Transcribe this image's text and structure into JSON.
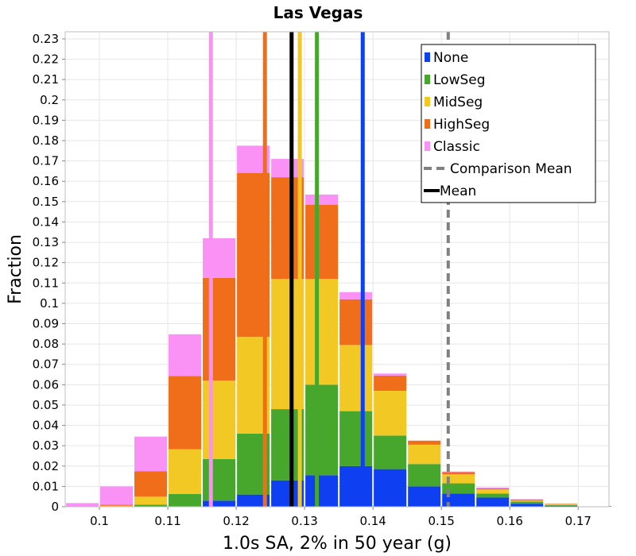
{
  "chart_data": {
    "type": "bar",
    "stacked": true,
    "title": "Las Vegas",
    "xlabel": "1.0s SA, 2% in 50 year (g)",
    "ylabel": "Fraction",
    "xlim": [
      0.095,
      0.1745
    ],
    "ylim": [
      0,
      0.2335
    ],
    "bin_width": 0.005,
    "x_ticks": [
      "0.1",
      "0.11",
      "0.12",
      "0.13",
      "0.14",
      "0.15",
      "0.16",
      "0.17"
    ],
    "x_tick_values": [
      0.1,
      0.11,
      0.12,
      0.13,
      0.14,
      0.15,
      0.16,
      0.17
    ],
    "y_ticks": [
      "0",
      "0.01",
      "0.02",
      "0.03",
      "0.04",
      "0.05",
      "0.06",
      "0.07",
      "0.08",
      "0.09",
      "0.1",
      "0.11",
      "0.12",
      "0.13",
      "0.14",
      "0.15",
      "0.16",
      "0.17",
      "0.18",
      "0.19",
      "0.2",
      "0.21",
      "0.22",
      "0.23"
    ],
    "y_tick_values": [
      0,
      0.01,
      0.02,
      0.03,
      0.04,
      0.05,
      0.06,
      0.07,
      0.08,
      0.09,
      0.1,
      0.11,
      0.12,
      0.13,
      0.14,
      0.15,
      0.16,
      0.17,
      0.18,
      0.19,
      0.2,
      0.21,
      0.22,
      0.23
    ],
    "bin_centers": [
      0.0975,
      0.1025,
      0.1075,
      0.1125,
      0.1175,
      0.1225,
      0.1275,
      0.1325,
      0.1375,
      0.1425,
      0.1475,
      0.1525,
      0.1575,
      0.1625,
      0.1675,
      0.1725
    ],
    "series": [
      {
        "name": "None",
        "color": "#0e3ff0",
        "values": [
          0,
          0,
          0,
          0.0003,
          0.003,
          0.006,
          0.013,
          0.0155,
          0.02,
          0.0185,
          0.01,
          0.0065,
          0.0045,
          0.0015,
          0.0005,
          0.0002
        ]
      },
      {
        "name": "LowSeg",
        "color": "#47a62c",
        "values": [
          0,
          0,
          0.001,
          0.006,
          0.0205,
          0.03,
          0.035,
          0.0445,
          0.027,
          0.0165,
          0.011,
          0.005,
          0.002,
          0.001,
          0.0003,
          0
        ]
      },
      {
        "name": "MidSeg",
        "color": "#f2c924",
        "values": [
          0,
          0.0005,
          0.004,
          0.022,
          0.0385,
          0.0475,
          0.064,
          0.052,
          0.0325,
          0.022,
          0.0095,
          0.0045,
          0.002,
          0.0005,
          0.0005,
          0
        ]
      },
      {
        "name": "HighSeg",
        "color": "#f06d19",
        "values": [
          0,
          0.0005,
          0.0125,
          0.036,
          0.0505,
          0.0805,
          0.05,
          0.0365,
          0.0225,
          0.0075,
          0.002,
          0.001,
          0.0005,
          0.0005,
          0.0002,
          0
        ]
      },
      {
        "name": "Classic",
        "color": "#fa91f5",
        "values": [
          0.0018,
          0.009,
          0.017,
          0.0205,
          0.0195,
          0.0135,
          0.009,
          0.005,
          0.0035,
          0.001,
          0,
          0.0003,
          0.0005,
          0.0002,
          0,
          0
        ]
      }
    ],
    "mean_lines": [
      {
        "name": "None",
        "x": 0.1385,
        "color": "#0e3ff0"
      },
      {
        "name": "LowSeg",
        "x": 0.1318,
        "color": "#47a62c"
      },
      {
        "name": "MidSeg",
        "x": 0.1293,
        "color": "#f2c924"
      },
      {
        "name": "HighSeg",
        "x": 0.1242,
        "color": "#f06d19"
      },
      {
        "name": "Classic",
        "x": 0.1163,
        "color": "#fa91f5"
      },
      {
        "name": "Mean",
        "x": 0.1281,
        "color": "#000000"
      },
      {
        "name": "Comparison Mean",
        "x": 0.151,
        "color": "#808080",
        "dashed": true
      }
    ],
    "legend": {
      "position": "top-right",
      "entries": [
        {
          "label": "None",
          "color": "#0e3ff0",
          "kind": "box"
        },
        {
          "label": "LowSeg",
          "color": "#47a62c",
          "kind": "box"
        },
        {
          "label": "MidSeg",
          "color": "#f2c924",
          "kind": "box"
        },
        {
          "label": "HighSeg",
          "color": "#f06d19",
          "kind": "box"
        },
        {
          "label": "Classic",
          "color": "#fa91f5",
          "kind": "box"
        },
        {
          "label": "Comparison Mean",
          "color": "#808080",
          "kind": "dash"
        },
        {
          "label": "Mean",
          "color": "#000000",
          "kind": "line"
        }
      ]
    },
    "grid": true
  }
}
